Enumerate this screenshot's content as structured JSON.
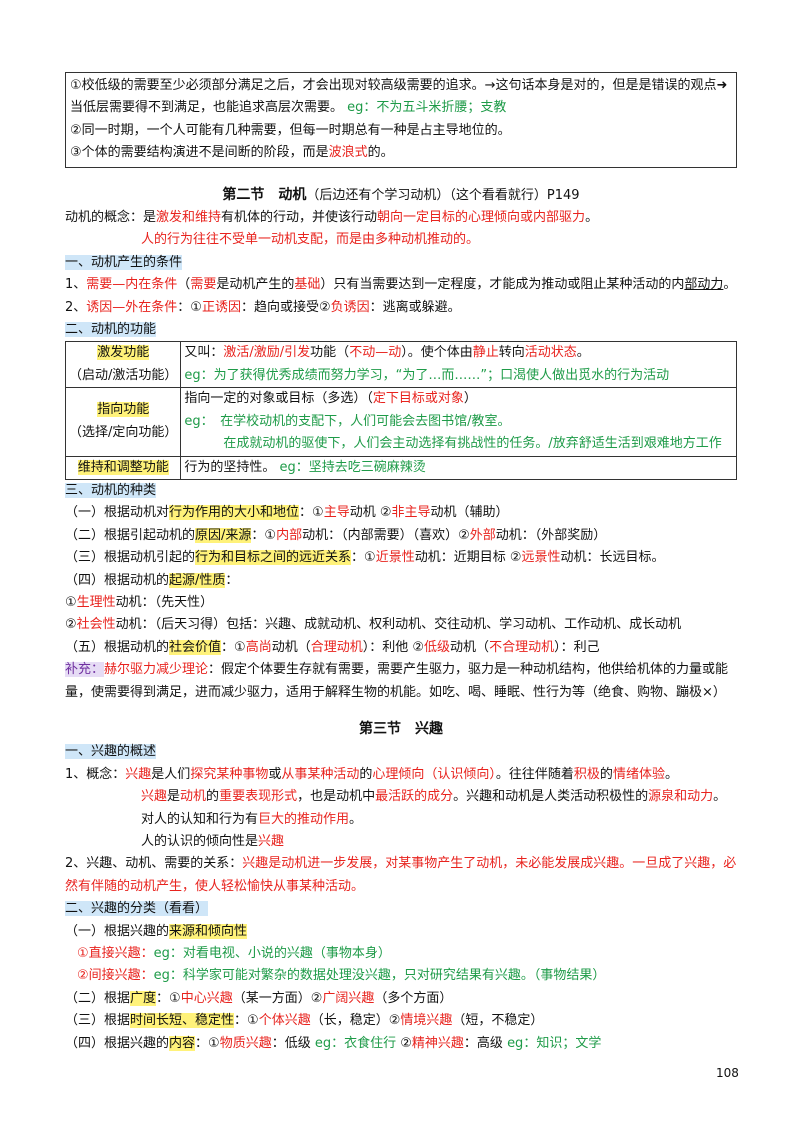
{
  "palette": {
    "red": "#e8231e",
    "green": "#1e9b48",
    "yellow": "#fff27a",
    "purple": "#7030a0",
    "lavender": "#e6dcf5"
  },
  "blocks": [
    {
      "kind": "box",
      "lines": [
        [
          "①校低级的需要至少必须部分满足之后，才会出现对较高级需要的追求。→这句话本身是对的，但是是错误的观点➜当低层需要得不到满足，也能追求高层次需要。 ",
          {
            "text": "eg：不为五斗米折腰；支教",
            "color": "green"
          }
        ],
        [
          "②同一时期，一个人可能有几种需要，但每一时期总有一种是占主导地位的。"
        ],
        [
          "③个体的需要结构演进不是间断的阶段，而是",
          {
            "text": "波浪式",
            "color": "red"
          },
          "的。"
        ]
      ]
    },
    {
      "kind": "section",
      "runs": [
        {
          "text": "第二节　动机",
          "bold": true
        },
        "（后边还有个学习动机）（这个看看就行）P149"
      ]
    },
    {
      "kind": "p",
      "runs": [
        "动机的概念：是",
        {
          "text": "激发和维持",
          "color": "red"
        },
        "有机体的行动，并使该行动",
        {
          "text": "朝向一定目标的心理倾向或内部驱力",
          "color": "red"
        },
        "。"
      ]
    },
    {
      "kind": "p-indent",
      "runs": [
        {
          "text": "人的行为往往不受单一动机支配，而是由多种动机推动的。",
          "color": "red"
        }
      ]
    },
    {
      "kind": "heading",
      "runs": [
        "一、动机产生的条件"
      ]
    },
    {
      "kind": "p",
      "runs": [
        "1、",
        {
          "text": "需要—内在条件",
          "color": "red"
        },
        "（",
        {
          "text": "需要",
          "color": "red"
        },
        "是动机产生的",
        {
          "text": "基础",
          "color": "red"
        },
        "）只有当需要达到一定程度，才能成为推动或阻止某种活动的内",
        {
          "text": "部动力",
          "underline": true
        },
        "。"
      ]
    },
    {
      "kind": "p",
      "runs": [
        "2、",
        {
          "text": "诱因—外在条件",
          "color": "red"
        },
        "：①",
        {
          "text": "正诱因",
          "color": "red"
        },
        "：趋向或接受②",
        {
          "text": "负诱因",
          "color": "red"
        },
        "：逃离或躲避。"
      ]
    },
    {
      "kind": "heading",
      "runs": [
        "二、动机的功能"
      ]
    },
    {
      "kind": "table",
      "rows": [
        {
          "label": [
            [
              {
                "text": "激发功能",
                "bg": "yellow"
              }
            ],
            [
              "（启动/激活功能）"
            ]
          ],
          "content": [
            [
              "又叫：",
              {
                "text": "激活/激励/引发",
                "color": "red"
              },
              "功能（",
              {
                "text": "不动—动",
                "color": "red"
              },
              "）。使个体由",
              {
                "text": "静止",
                "color": "red"
              },
              "转向",
              {
                "text": "活动状态",
                "color": "red"
              },
              "。"
            ],
            [
              {
                "text": "eg：为了获得优秀成绩而努力学习，“为了…而……”；口渴使人做出觅水的行为活动",
                "color": "green"
              }
            ]
          ]
        },
        {
          "label": [
            [
              {
                "text": "指向功能",
                "bg": "yellow"
              }
            ],
            [
              "（选择/定向功能）"
            ]
          ],
          "content": [
            [
              "指向一定的对象或目标（多选）（",
              {
                "text": "定下目标或对象",
                "color": "red"
              },
              "）"
            ],
            [
              {
                "text": "eg：　在学校动机的支配下，人们可能会去图书馆/教室。",
                "color": "green"
              }
            ],
            [
              {
                "text": "　　　在成就动机的驱使下，人们会主动选择有挑战性的任务。/放弃舒适生活到艰难地方工作",
                "color": "green"
              }
            ]
          ]
        },
        {
          "label": [
            [
              {
                "text": "维持和调整功能",
                "bg": "yellow"
              }
            ]
          ],
          "content": [
            [
              "行为的坚持性。 ",
              {
                "text": "eg：坚持去吃三碗麻辣烫",
                "color": "green"
              }
            ]
          ]
        }
      ]
    },
    {
      "kind": "heading",
      "runs": [
        "三、动机的种类"
      ]
    },
    {
      "kind": "p",
      "runs": [
        "（一）根据动机对",
        {
          "text": "行为作用的大小和地位",
          "bg": "yellow"
        },
        "：①",
        {
          "text": "主导",
          "color": "red"
        },
        "动机 ②",
        {
          "text": "非主导",
          "color": "red"
        },
        "动机（辅助）"
      ]
    },
    {
      "kind": "p",
      "runs": [
        "（二）根据引起动机的",
        {
          "text": "原因/来源",
          "bg": "yellow"
        },
        "：①",
        {
          "text": "内部",
          "color": "red"
        },
        "动机：（内部需要）（喜欢）②",
        {
          "text": "外部",
          "color": "red"
        },
        "动机：（外部奖励）"
      ]
    },
    {
      "kind": "p",
      "runs": [
        "（三）根据动机引起的",
        {
          "text": "行为和目标之间的远近关系",
          "bg": "yellow"
        },
        "：①",
        {
          "text": "近景性",
          "color": "red"
        },
        "动机：近期目标 ②",
        {
          "text": "远景性",
          "color": "red"
        },
        "动机：长远目标。"
      ]
    },
    {
      "kind": "p",
      "runs": [
        "（四）根据动机的",
        {
          "text": "起源/性质",
          "bg": "yellow"
        },
        "："
      ]
    },
    {
      "kind": "p",
      "runs": [
        "①",
        {
          "text": "生理性",
          "color": "red"
        },
        "动机：（先天性）"
      ]
    },
    {
      "kind": "p",
      "runs": [
        "②",
        {
          "text": "社会性",
          "color": "red"
        },
        "动机：（后天习得）包括：兴趣、成就动机、权利动机、交往动机、学习动机、工作动机、成长动机"
      ]
    },
    {
      "kind": "p",
      "runs": [
        "（五）根据动机的",
        {
          "text": "社会价值",
          "bg": "yellow"
        },
        "：①",
        {
          "text": "高尚",
          "color": "red"
        },
        "动机（",
        {
          "text": "合理动机",
          "color": "red"
        },
        "）：利他 ②",
        {
          "text": "低级",
          "color": "red"
        },
        "动机（",
        {
          "text": "不合理动机",
          "color": "red"
        },
        "）：利己"
      ]
    },
    {
      "kind": "p",
      "runs": [
        {
          "text": "补充：",
          "color": "purple",
          "bg": "lavender"
        },
        {
          "text": "赫尔驱力减少理论",
          "color": "red"
        },
        "：假定个体要生存就有需要，需要产生驱力，驱力是一种动机结构，他供给机体的力量或能量，使需要得到满足，进而减少驱力，适用于解释生物的机能。如吃、喝、睡眠、性行为等（绝食、购物、蹦极×）"
      ]
    },
    {
      "kind": "section",
      "runs": [
        {
          "text": "第三节　兴趣",
          "bold": true
        }
      ]
    },
    {
      "kind": "heading",
      "runs": [
        "一、兴趣的概述"
      ]
    },
    {
      "kind": "p",
      "runs": [
        "1、概念：",
        {
          "text": "兴趣",
          "color": "red"
        },
        "是人们",
        {
          "text": "探究某种事物",
          "color": "red"
        },
        "或",
        {
          "text": "从事某种活动",
          "color": "red"
        },
        "的",
        {
          "text": "心理倾向（认识倾向）",
          "color": "red"
        },
        "。往往伴随着",
        {
          "text": "积极",
          "color": "red"
        },
        "的",
        {
          "text": "情绪体验",
          "color": "red"
        },
        "。"
      ]
    },
    {
      "kind": "p-indent",
      "runs": [
        {
          "text": "兴趣",
          "color": "red"
        },
        "是",
        {
          "text": "动机",
          "color": "red"
        },
        "的",
        {
          "text": "重要表现形式",
          "color": "red"
        },
        "，也是动机中",
        {
          "text": "最活跃的成分",
          "color": "red"
        },
        "。兴趣和动机是人类活动积极性的",
        {
          "text": "源泉和动力",
          "color": "red"
        },
        "。"
      ]
    },
    {
      "kind": "p-indent",
      "runs": [
        "对人的认知和行为有",
        {
          "text": "巨大的推动作用",
          "color": "red"
        },
        "。"
      ]
    },
    {
      "kind": "p-indent",
      "runs": [
        "人的认识的倾向性是",
        {
          "text": "兴趣",
          "color": "red"
        }
      ]
    },
    {
      "kind": "p",
      "runs": [
        "2、兴趣、动机、需要的关系：",
        {
          "text": "兴趣是动机进一步发展，对某事物产生了动机，未必能发展成兴趣。一旦成了兴趣，必然有伴随的动机产生，使人轻松愉快从事某种活动。",
          "color": "red"
        }
      ]
    },
    {
      "kind": "heading",
      "runs": [
        "二、兴趣的分类（看看）"
      ]
    },
    {
      "kind": "p",
      "runs": [
        "（一）根据兴趣的",
        {
          "text": "来源和倾向性",
          "bg": "yellow"
        }
      ]
    },
    {
      "kind": "p-indent1",
      "runs": [
        {
          "text": "①直接兴趣：",
          "color": "red"
        },
        {
          "text": "eg：对看电视、小说的兴趣（事物本身）",
          "color": "green"
        }
      ]
    },
    {
      "kind": "p-indent1",
      "runs": [
        {
          "text": "②间接兴趣：",
          "color": "red"
        },
        {
          "text": "eg：科学家可能对繁杂的数据处理没兴趣，只对研究结果有兴趣。（事物结果）",
          "color": "green"
        }
      ]
    },
    {
      "kind": "p",
      "runs": [
        "（二）根据",
        {
          "text": "广度",
          "bg": "yellow"
        },
        "：①",
        {
          "text": "中心兴趣",
          "color": "red"
        },
        "（某一方面）②",
        {
          "text": "广阔兴趣",
          "color": "red"
        },
        "（多个方面）"
      ]
    },
    {
      "kind": "p",
      "runs": [
        "（三）根据",
        {
          "text": "时间长短、稳定性",
          "bg": "yellow"
        },
        "：①",
        {
          "text": "个体兴趣",
          "color": "red"
        },
        "（长，稳定）②",
        {
          "text": "情境兴趣",
          "color": "red"
        },
        "（短，不稳定）"
      ]
    },
    {
      "kind": "p",
      "runs": [
        "（四）根据兴趣的",
        {
          "text": "内容",
          "bg": "yellow"
        },
        "：①",
        {
          "text": "物质兴趣",
          "color": "red"
        },
        "：低级 ",
        {
          "text": "eg：衣食住行",
          "color": "green"
        },
        " ②",
        {
          "text": "精神兴趣",
          "color": "red"
        },
        "：高级 ",
        {
          "text": "eg：知识；文学",
          "color": "green"
        }
      ]
    }
  ],
  "page_number": "108"
}
